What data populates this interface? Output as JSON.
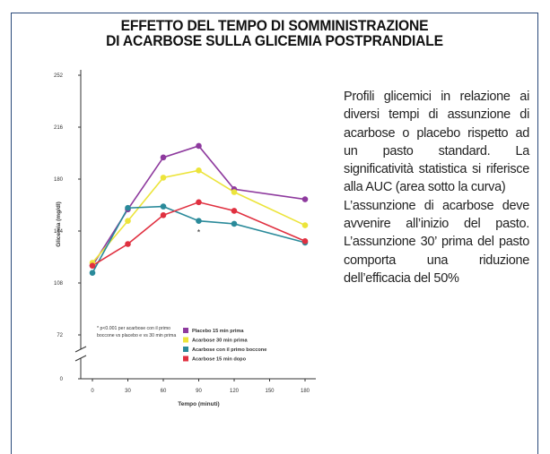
{
  "title": [
    "EFFETTO DEL TEMPO DI SOMMINISTRAZIONE",
    "DI ACARBOSE SULLA GLICEMIA POSTPRANDIALE"
  ],
  "paragraphs": [
    "Profili glicemici in relazione ai diversi tempi di assunzione di acarbose o placebo rispetto ad un pasto standard. La significatività statistica si riferisce alla AUC (area sotto la curva)",
    "L’assunzione di acarbose deve avvenire all’inizio del pasto. L’assunzione 30’ prima del pasto comporta una riduzione dell’efficacia del 50%"
  ],
  "chart_data": {
    "type": "line",
    "x_label": "Tempo (minuti)",
    "y_label": "Glicemia (mg/dl)",
    "x": [
      0,
      30,
      60,
      90,
      120,
      180
    ],
    "xlim": [
      0,
      180
    ],
    "xticks": [
      0,
      30,
      60,
      90,
      120,
      150,
      180
    ],
    "ylim": [
      0,
      252
    ],
    "yticks": [
      0,
      72,
      108,
      144,
      180,
      216,
      252
    ],
    "y_axis_break": true,
    "series": [
      {
        "name": "Placebo 15 min prima",
        "color": "#8e3a9e",
        "values": [
          120,
          159,
          195,
          203,
          173,
          166
        ]
      },
      {
        "name": "Acarbose 30 min prima",
        "color": "#ece43a",
        "values": [
          122,
          151,
          181,
          186,
          171,
          148
        ]
      },
      {
        "name": "Acarbose con il primo boccone",
        "color": "#2a8a9a",
        "values": [
          115,
          160,
          161,
          151,
          149,
          136
        ]
      },
      {
        "name": "Acarbose 15 min dopo",
        "color": "#e03040",
        "values": [
          120,
          135,
          155,
          164,
          158,
          137
        ]
      }
    ],
    "annotations": [
      "*",
      "* p<0.001 per acarbose con il primo boccone vs placebo e vs 30 min prima"
    ]
  }
}
